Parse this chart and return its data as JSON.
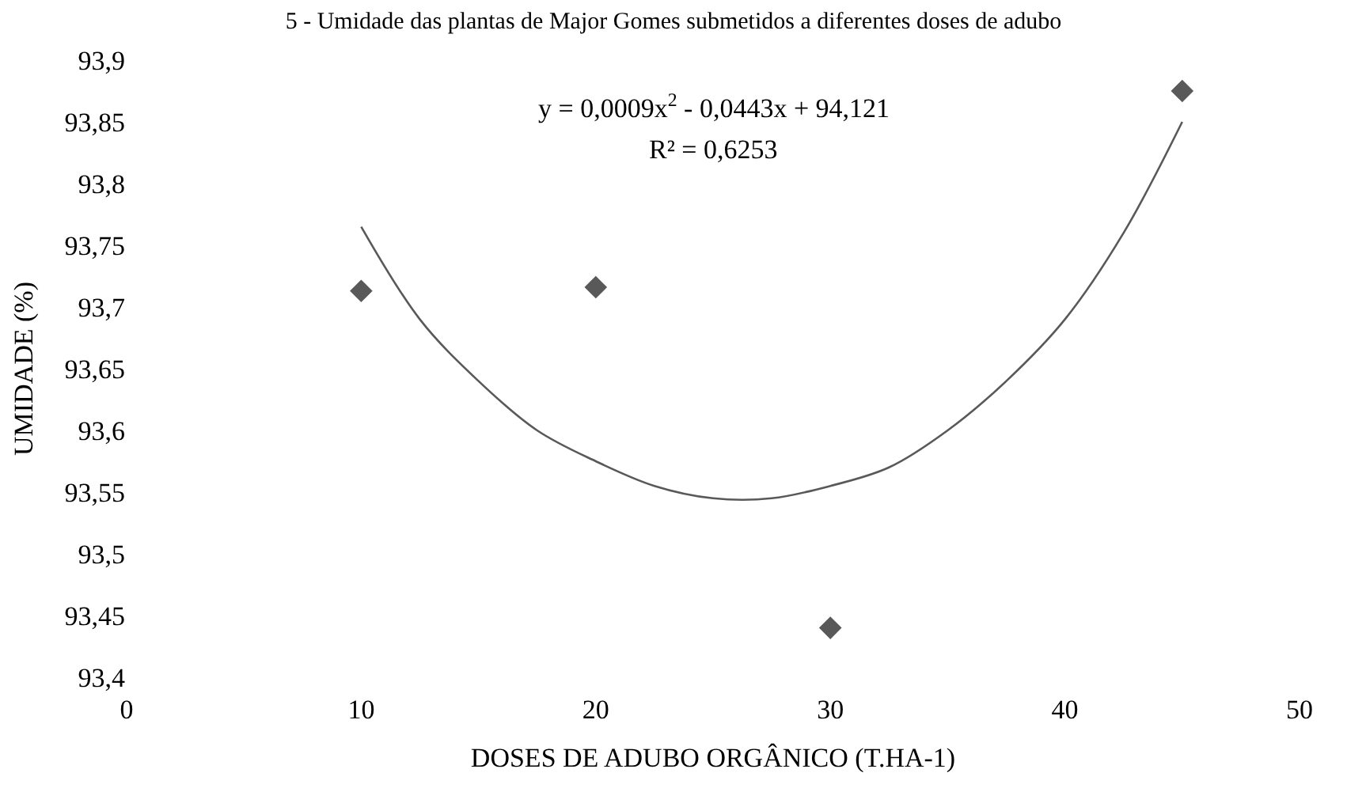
{
  "chart_data": {
    "type": "scatter",
    "title": "5 - Umidade das plantas de Major Gomes submetidos a diferentes doses de adubo",
    "xlabel": "DOSES DE ADUBO ORGÂNICO (T.HA-1)",
    "ylabel": "UMIDADE (%)",
    "annotations": [
      "y = 0,0009x$^{2}$ - 0,0443x + 94,121",
      "R² = 0,6253"
    ],
    "series": [
      {
        "color": "#595959",
        "marker": "diamond",
        "x": [
          10,
          20,
          30,
          45
        ],
        "values": [
          93.713,
          93.716,
          93.44,
          93.875
        ]
      },
      {
        "type": "line",
        "color": "#595959",
        "marker": "none",
        "x": [
          10,
          12.5,
          15,
          17.5,
          20,
          22.5,
          25,
          27.5,
          30,
          32.5,
          35,
          37.5,
          40,
          42.5,
          45
        ],
        "values": [
          93.765,
          93.69,
          93.64,
          93.6,
          93.575,
          93.555,
          93.545,
          93.545,
          93.555,
          93.57,
          93.6,
          93.64,
          93.69,
          93.76,
          93.85
        ]
      }
    ],
    "xlim": [
      0,
      50
    ],
    "xticks": [
      0,
      10,
      20,
      30,
      40,
      50
    ],
    "ylim": [
      93.4,
      93.9
    ],
    "yticks": [
      {
        "value": 93.4,
        "label": "93,4"
      },
      {
        "value": 93.45,
        "label": "93,45"
      },
      {
        "value": 93.5,
        "label": "93,5"
      },
      {
        "value": 93.55,
        "label": "93,55"
      },
      {
        "value": 93.6,
        "label": "93,6"
      },
      {
        "value": 93.65,
        "label": "93,65"
      },
      {
        "value": 93.7,
        "label": "93,7"
      },
      {
        "value": 93.75,
        "label": "93,75"
      },
      {
        "value": 93.8,
        "label": "93,8"
      },
      {
        "value": 93.85,
        "label": "93,85"
      },
      {
        "value": 93.9,
        "label": "93,9"
      }
    ],
    "legend": false
  }
}
